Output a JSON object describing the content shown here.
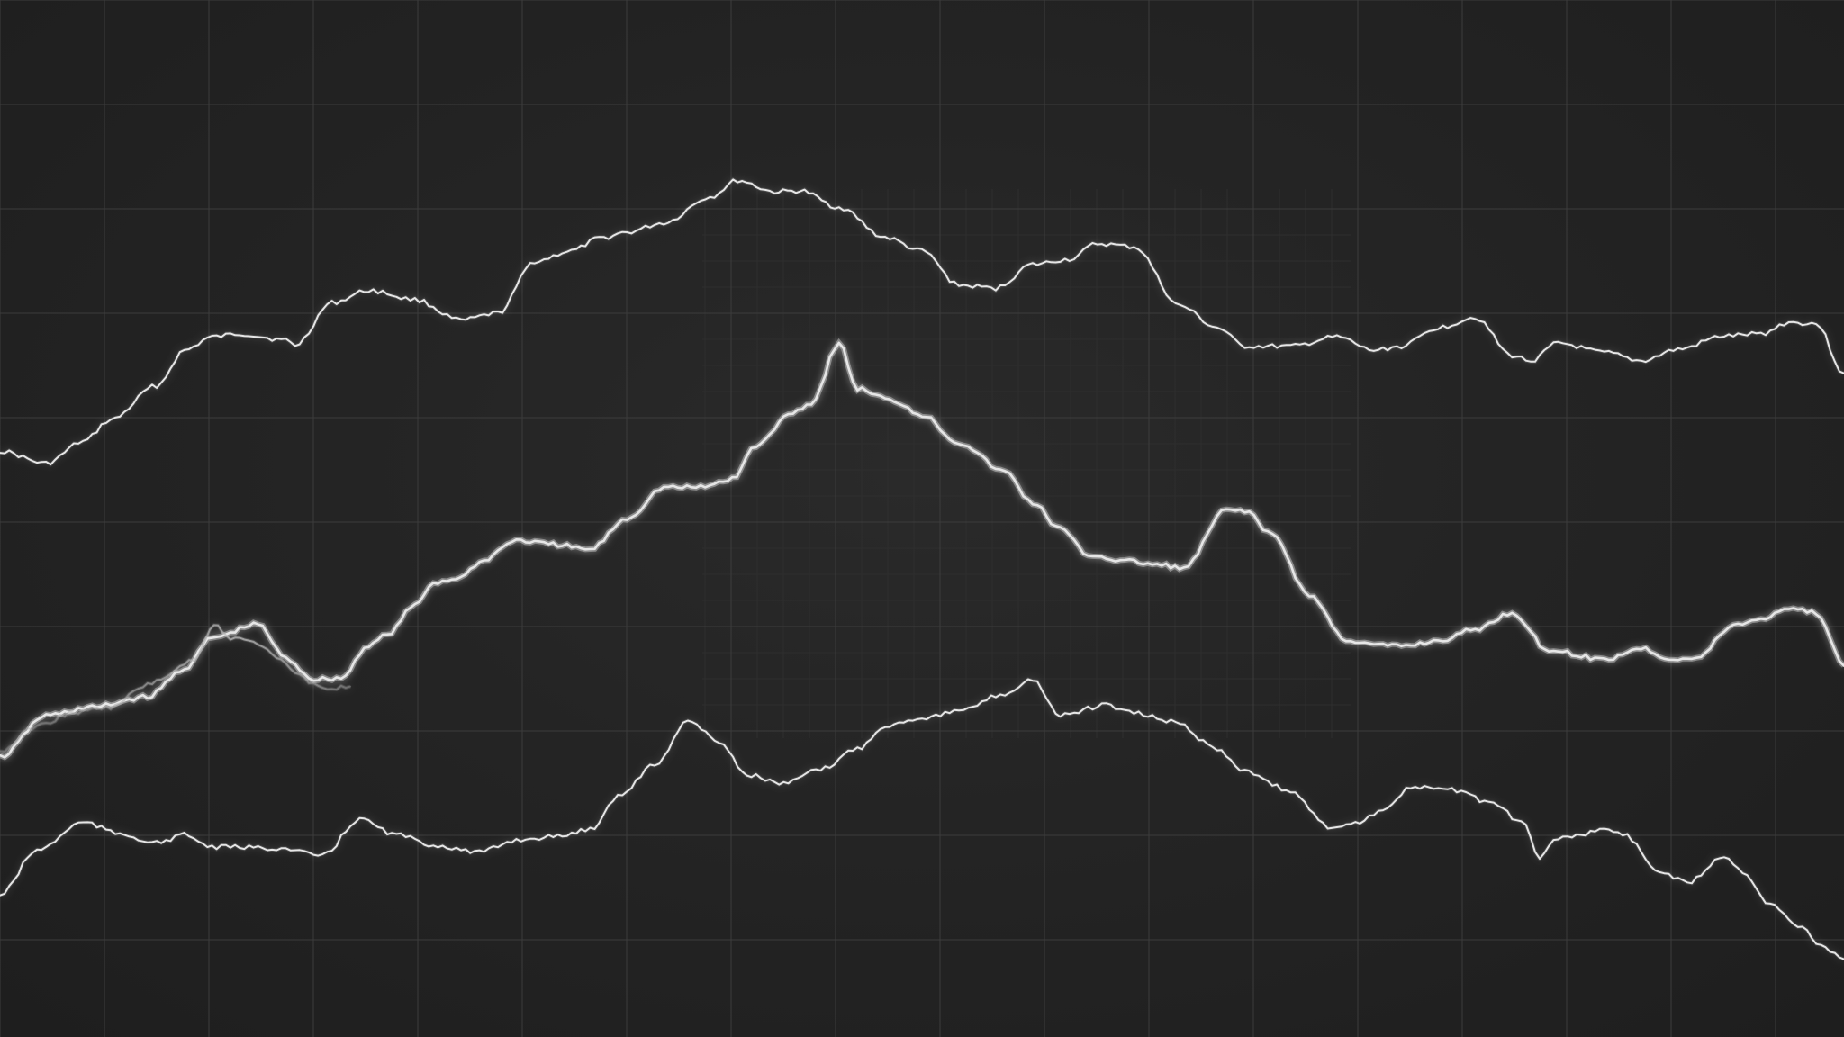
{
  "chart_data": {
    "type": "line",
    "title": "",
    "xlabel": "",
    "ylabel": "",
    "xlim": [
      0,
      1
    ],
    "ylim": [
      0,
      1
    ],
    "grid": true,
    "legend": "none",
    "colors": {
      "background": "#232323",
      "major_grid": "#3c3c3c",
      "minor_grid": "#2e2e2e",
      "line": "#e6e6e6",
      "glow": "#ffffff"
    },
    "series": [
      {
        "x": [
          0.0,
          0.025,
          0.045,
          0.06,
          0.085,
          0.1,
          0.115,
          0.13,
          0.155,
          0.16,
          0.18,
          0.2,
          0.225,
          0.25,
          0.27,
          0.29,
          0.31,
          0.325,
          0.34,
          0.36,
          0.385,
          0.4,
          0.42,
          0.434,
          0.455,
          0.48,
          0.5,
          0.52,
          0.54,
          0.56,
          0.58,
          0.595,
          0.615,
          0.64,
          0.66,
          0.675,
          0.7,
          0.725,
          0.745,
          0.76,
          0.78,
          0.8,
          0.82,
          0.83,
          0.845,
          0.87,
          0.89,
          0.91,
          0.935,
          0.955,
          0.97,
          0.985,
          1.0
        ],
        "y": [
          0.565,
          0.553,
          0.574,
          0.595,
          0.628,
          0.662,
          0.675,
          0.678,
          0.672,
          0.667,
          0.708,
          0.72,
          0.711,
          0.691,
          0.698,
          0.748,
          0.758,
          0.77,
          0.776,
          0.785,
          0.81,
          0.826,
          0.815,
          0.816,
          0.8,
          0.771,
          0.758,
          0.725,
          0.722,
          0.745,
          0.75,
          0.765,
          0.762,
          0.705,
          0.684,
          0.666,
          0.666,
          0.675,
          0.662,
          0.666,
          0.684,
          0.694,
          0.657,
          0.652,
          0.669,
          0.66,
          0.652,
          0.663,
          0.676,
          0.678,
          0.689,
          0.688,
          0.64
        ]
      },
      {
        "x": [
          0.0,
          0.025,
          0.05,
          0.08,
          0.1,
          0.115,
          0.14,
          0.155,
          0.17,
          0.185,
          0.2,
          0.21,
          0.225,
          0.235,
          0.25,
          0.26,
          0.28,
          0.3,
          0.32,
          0.34,
          0.36,
          0.38,
          0.397,
          0.41,
          0.43,
          0.44,
          0.455,
          0.465,
          0.485,
          0.5,
          0.52,
          0.545,
          0.56,
          0.575,
          0.59,
          0.61,
          0.63,
          0.642,
          0.665,
          0.675,
          0.69,
          0.71,
          0.73,
          0.745,
          0.76,
          0.78,
          0.8,
          0.82,
          0.84,
          0.87,
          0.89,
          0.905,
          0.92,
          0.94,
          0.955,
          0.97,
          0.985,
          1.0
        ],
        "y": [
          0.27,
          0.31,
          0.318,
          0.328,
          0.355,
          0.385,
          0.398,
          0.365,
          0.345,
          0.346,
          0.378,
          0.388,
          0.416,
          0.438,
          0.443,
          0.458,
          0.479,
          0.475,
          0.47,
          0.5,
          0.53,
          0.53,
          0.538,
          0.57,
          0.603,
          0.611,
          0.669,
          0.625,
          0.613,
          0.6,
          0.573,
          0.545,
          0.515,
          0.49,
          0.465,
          0.459,
          0.455,
          0.452,
          0.508,
          0.508,
          0.484,
          0.426,
          0.383,
          0.378,
          0.377,
          0.382,
          0.393,
          0.409,
          0.373,
          0.364,
          0.375,
          0.365,
          0.365,
          0.397,
          0.403,
          0.414,
          0.409,
          0.358
        ]
      },
      {
        "x": [
          0.0,
          0.02,
          0.04,
          0.06,
          0.08,
          0.105,
          0.116,
          0.125,
          0.14,
          0.15,
          0.16,
          0.17,
          0.18,
          0.19
        ],
        "y": [
          0.275,
          0.3,
          0.313,
          0.318,
          0.34,
          0.363,
          0.398,
          0.385,
          0.38,
          0.365,
          0.353,
          0.34,
          0.336,
          0.338
        ]
      },
      {
        "x": [
          0.0,
          0.02,
          0.045,
          0.065,
          0.085,
          0.1,
          0.115,
          0.13,
          0.15,
          0.175,
          0.195,
          0.215,
          0.235,
          0.26,
          0.28,
          0.3,
          0.32,
          0.335,
          0.355,
          0.373,
          0.39,
          0.405,
          0.425,
          0.445,
          0.465,
          0.48,
          0.5,
          0.52,
          0.545,
          0.56,
          0.575,
          0.6,
          0.615,
          0.64,
          0.65,
          0.66,
          0.675,
          0.7,
          0.72,
          0.735,
          0.75,
          0.765,
          0.775,
          0.79,
          0.81,
          0.825,
          0.835,
          0.845,
          0.86,
          0.87,
          0.88,
          0.9,
          0.915,
          0.935,
          0.945,
          0.96,
          0.975,
          0.99,
          1.0
        ],
        "y": [
          0.137,
          0.18,
          0.207,
          0.196,
          0.187,
          0.195,
          0.183,
          0.183,
          0.182,
          0.175,
          0.21,
          0.195,
          0.185,
          0.178,
          0.19,
          0.193,
          0.2,
          0.232,
          0.262,
          0.305,
          0.285,
          0.253,
          0.244,
          0.258,
          0.278,
          0.3,
          0.308,
          0.314,
          0.331,
          0.345,
          0.31,
          0.32,
          0.312,
          0.303,
          0.288,
          0.277,
          0.257,
          0.237,
          0.203,
          0.206,
          0.219,
          0.24,
          0.24,
          0.238,
          0.224,
          0.208,
          0.174,
          0.192,
          0.196,
          0.201,
          0.196,
          0.16,
          0.149,
          0.175,
          0.16,
          0.128,
          0.108,
          0.085,
          0.075
        ]
      }
    ]
  }
}
